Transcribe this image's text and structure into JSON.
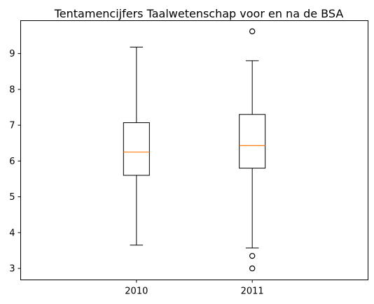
{
  "chart_data": {
    "type": "boxplot",
    "title": "Tentamencijfers Taalwetenschap voor en na de BSA",
    "xlabel": "",
    "ylabel": "",
    "categories": [
      "2010",
      "2011"
    ],
    "ylim": [
      2.68,
      9.92
    ],
    "yticks": [
      3,
      4,
      5,
      6,
      7,
      8,
      9
    ],
    "grid": false,
    "boxes": [
      {
        "label": "2010",
        "whisker_low": 3.65,
        "q1": 5.6,
        "median": 6.25,
        "q3": 7.07,
        "whisker_high": 9.18,
        "fliers": []
      },
      {
        "label": "2011",
        "whisker_low": 3.57,
        "q1": 5.8,
        "median": 6.43,
        "q3": 7.3,
        "whisker_high": 8.8,
        "fliers": [
          3.0,
          3.35,
          9.62
        ]
      }
    ],
    "colors": {
      "box": "#000000",
      "median": "#ff7f0e",
      "flier": "#000000"
    }
  }
}
